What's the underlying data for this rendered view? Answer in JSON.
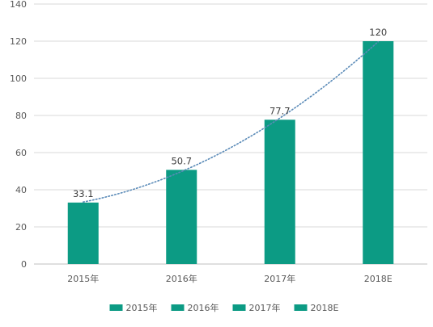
{
  "chart_data": {
    "type": "bar",
    "title": "",
    "xlabel": "",
    "ylabel": "",
    "categories": [
      "2015年",
      "2016年",
      "2017年",
      "2018E"
    ],
    "values": [
      33.1,
      50.7,
      77.7,
      120
    ],
    "data_labels": [
      "33.1",
      "50.7",
      "77.7",
      "120"
    ],
    "ylim": [
      0,
      140
    ],
    "yticks": [
      0,
      20,
      40,
      60,
      80,
      100,
      120,
      140
    ],
    "grid": true,
    "bar_color": "#0c9b84",
    "trendline": {
      "type": "polynomial",
      "style": "dotted",
      "color": "#5b8bb8"
    },
    "legend": {
      "position": "bottom",
      "entries": [
        "2015年",
        "2016年",
        "2017年",
        "2018E"
      ]
    }
  }
}
